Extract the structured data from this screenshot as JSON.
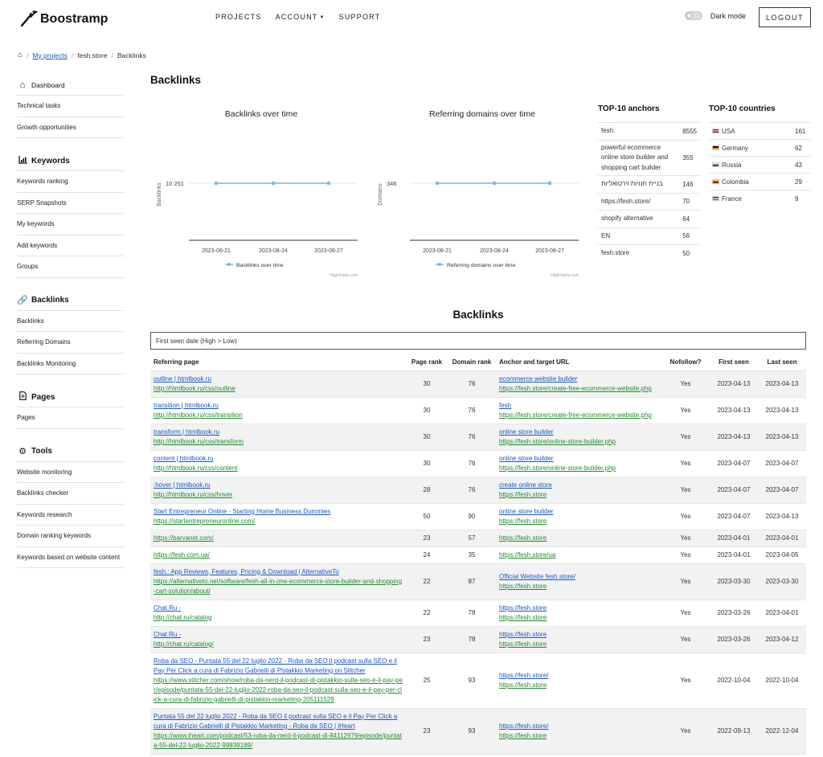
{
  "app": {
    "name": "Boostramp"
  },
  "nav": {
    "projects": "PROJECTS",
    "account": "ACCOUNT",
    "support": "SUPPORT",
    "dark_mode": "Dark mode",
    "logout": "LOGOUT"
  },
  "breadcrumb": {
    "my_projects": "My projects",
    "project": "fesh.store",
    "current": "Backlinks"
  },
  "sidebar": {
    "dashboard": "Dashboard",
    "general": [
      "Technical tasks",
      "Growth opportunities"
    ],
    "keywords": {
      "title": "Keywords",
      "items": [
        "Keywords ranking",
        "SERP Snapshots",
        "My keywords",
        "Add keywords",
        "Groups"
      ]
    },
    "backlinks": {
      "title": "Backlinks",
      "items": [
        "Backlinks",
        "Referring Domains",
        "Backlinks Monitoring"
      ]
    },
    "pages": {
      "title": "Pages",
      "items": [
        "Pages"
      ]
    },
    "tools": {
      "title": "Tools",
      "items": [
        "Website monitoring",
        "Backlinks checker",
        "Keywords research",
        "Domain ranking keywords",
        "Keywords based on website content"
      ]
    }
  },
  "page_title": "Backlinks",
  "chart_data": [
    {
      "type": "line",
      "title": "Backlinks over time",
      "ylabel": "Backlinks",
      "x": [
        "2023-08-21",
        "2023-08-24",
        "2023-08-27"
      ],
      "series": [
        {
          "name": "Backlinks over time",
          "values": [
            10251,
            10251,
            10251
          ]
        }
      ],
      "y_tick_labels": [
        "10 251"
      ],
      "credit": "Highcharts.com",
      "color": "#7cb5ec"
    },
    {
      "type": "line",
      "title": "Referring domains over time",
      "ylabel": "Domains",
      "x": [
        "2023-08-21",
        "2023-08-24",
        "2023-08-27"
      ],
      "series": [
        {
          "name": "Referring domains over time",
          "values": [
            346,
            346,
            346
          ]
        }
      ],
      "y_tick_labels": [
        "346"
      ],
      "credit": "Highcharts.com",
      "color": "#7cb5ec"
    }
  ],
  "top_anchors": {
    "title": "TOP-10 anchors",
    "rows": [
      {
        "anchor": "fesh.",
        "count": "8555"
      },
      {
        "anchor": "powerful ecommerce online store builder and shopping cart builder",
        "count": "355"
      },
      {
        "anchor": "בניית חנויות וירטואליות",
        "count": "146"
      },
      {
        "anchor": "https://fesh.store/",
        "count": "70"
      },
      {
        "anchor": "shopify alternative",
        "count": "64"
      },
      {
        "anchor": "EN",
        "count": "56"
      },
      {
        "anchor": "fesh.store",
        "count": "50"
      }
    ]
  },
  "top_countries": {
    "title": "TOP-10 countries",
    "rows": [
      {
        "country": "USA",
        "count": "161",
        "flag": [
          "#b22234",
          "#ffffff",
          "#3c3b6e"
        ]
      },
      {
        "country": "Germany",
        "count": "62",
        "flag": [
          "#000000",
          "#dd0000",
          "#ffce00"
        ]
      },
      {
        "country": "Russia",
        "count": "43",
        "flag": [
          "#ffffff",
          "#0039a6",
          "#d52b1e"
        ]
      },
      {
        "country": "Colombia",
        "count": "29",
        "flag": [
          "#fcd116",
          "#003893",
          "#ce1126"
        ]
      },
      {
        "country": "France",
        "count": "9",
        "flag": [
          "#0055a4",
          "#ffffff",
          "#ef4135"
        ]
      }
    ]
  },
  "backlinks_section": {
    "title": "Backlinks",
    "sort_label": "First seen date (High > Low)",
    "columns": [
      "Referring page",
      "Page rank",
      "Domain rank",
      "Anchor and target URL",
      "Nofollow?",
      "First seen",
      "Last seen"
    ],
    "rows": [
      {
        "title": "outline | htmlbook.ru",
        "url": "http://htmlbook.ru/css/outline",
        "page_rank": "30",
        "domain_rank": "76",
        "anchor": "ecommerce website builder",
        "target": "https://fesh.store/create-free-ecommerce-website.php",
        "nofollow": "Yes",
        "first_seen": "2023-04-13",
        "last_seen": "2023-04-13"
      },
      {
        "title": "transition | htmlbook.ru",
        "url": "http://htmlbook.ru/css/transition",
        "page_rank": "30",
        "domain_rank": "76",
        "anchor": "fesh",
        "target": "https://fesh.store/create-free-ecommerce-website.php",
        "nofollow": "Yes",
        "first_seen": "2023-04-13",
        "last_seen": "2023-04-13"
      },
      {
        "title": "transform | htmlbook.ru",
        "url": "http://htmlbook.ru/css/transform",
        "page_rank": "30",
        "domain_rank": "76",
        "anchor": "online store builder",
        "target": "https://fesh.store/online-store-builder.php",
        "nofollow": "Yes",
        "first_seen": "2023-04-13",
        "last_seen": "2023-04-13"
      },
      {
        "title": "content | htmlbook.ru",
        "url": "http://htmlbook.ru/css/content",
        "page_rank": "30",
        "domain_rank": "76",
        "anchor": "online store builder",
        "target": "https://fesh.store/online-store-builder.php",
        "nofollow": "Yes",
        "first_seen": "2023-04-07",
        "last_seen": "2023-04-07"
      },
      {
        "title": ":hover | htmlbook.ru",
        "url": "http://htmlbook.ru/css/hover",
        "page_rank": "28",
        "domain_rank": "76",
        "anchor": "create online store",
        "target": "https://fesh.store",
        "nofollow": "Yes",
        "first_seen": "2023-04-07",
        "last_seen": "2023-04-07"
      },
      {
        "title": "Start Entrepreneur Online - Starting Home Business Dummies",
        "url": "https://startentrepreneuronline.com/",
        "page_rank": "50",
        "domain_rank": "90",
        "anchor": "online store builder",
        "target": "https://fesh.store",
        "nofollow": "Yes",
        "first_seen": "2023-04-07",
        "last_seen": "2023-04-13"
      },
      {
        "title": "",
        "url": "https://barvanet.com/",
        "page_rank": "23",
        "domain_rank": "57",
        "anchor": "",
        "target": "https://fesh.store",
        "nofollow": "Yes",
        "first_seen": "2023-04-01",
        "last_seen": "2023-04-01"
      },
      {
        "title": "",
        "url": "https://fesh.com.ua/",
        "page_rank": "24",
        "domain_rank": "35",
        "anchor": "",
        "target": "https://fesh.store/ua",
        "nofollow": "Yes",
        "first_seen": "2023-04-01",
        "last_seen": "2023-04-05"
      },
      {
        "title": "fesh.: App Reviews, Features, Pricing & Download | AlternativeTo",
        "url": "https://alternativeto.net/software/fesh-all-in-one-ecommerce-store-builder-and-shopping-cart-solution/about/",
        "page_rank": "22",
        "domain_rank": "87",
        "anchor": "Official Website fesh.store/",
        "target": "https://fesh.store",
        "nofollow": "Yes",
        "first_seen": "2023-03-30",
        "last_seen": "2023-03-30"
      },
      {
        "title": "Chat.Ru -",
        "url": "http://chat.ru/catalog",
        "page_rank": "22",
        "domain_rank": "78",
        "anchor": "https://fesh.store",
        "target": "https://fesh.store",
        "nofollow": "Yes",
        "first_seen": "2023-03-26",
        "last_seen": "2023-04-01"
      },
      {
        "title": "Chat.Ru -",
        "url": "http://chat.ru/catalog/",
        "page_rank": "23",
        "domain_rank": "78",
        "anchor": "https://fesh.store",
        "target": "https://fesh.store",
        "nofollow": "Yes",
        "first_seen": "2023-03-26",
        "last_seen": "2023-04-12"
      },
      {
        "title": "Roba da SEO - Puntata 55 del 22 luglio 2022 - Roba da SEO il podcast sulla SEO e il Pay Per Click a cura di Fabrizio Gabrielli di Pistakkio Marketing on Stitcher",
        "url": "https://www.stitcher.com/show/roba-da-nerd-il-podcast-di-pistakkio-sulla-seo-e-il-pay-per/episode/puntata-55-del-22-luglio-2022-roba-da-seo-il-podcast-sulla-seo-e-il-pay-per-click-a-cura-di-fabrizio-gabrielli-di-pistakkio-marketing-205111529",
        "page_rank": "25",
        "domain_rank": "93",
        "anchor": "https://fesh.store/",
        "target": "https://fesh.store",
        "nofollow": "Yes",
        "first_seen": "2022-10-04",
        "last_seen": "2022-10-04"
      },
      {
        "title": "Puntata 55 del 22 luglio 2022 - Roba da SEO il podcast sulla SEO e il Pay Per Click a cura di Fabrizio Gabrielli di Pistakkio Marketing - Roba da SEO | iHeart",
        "url": "https://www.iheart.com/podcast/53-roba-da-nerd-il-podcast-di-84112979/episode/puntata-55-del-22-luglio-2022-99839189/",
        "page_rank": "23",
        "domain_rank": "93",
        "anchor": "https://fesh.store/",
        "target": "https://fesh.store",
        "nofollow": "Yes",
        "first_seen": "2022-09-13",
        "last_seen": "2022-12-04"
      }
    ]
  }
}
